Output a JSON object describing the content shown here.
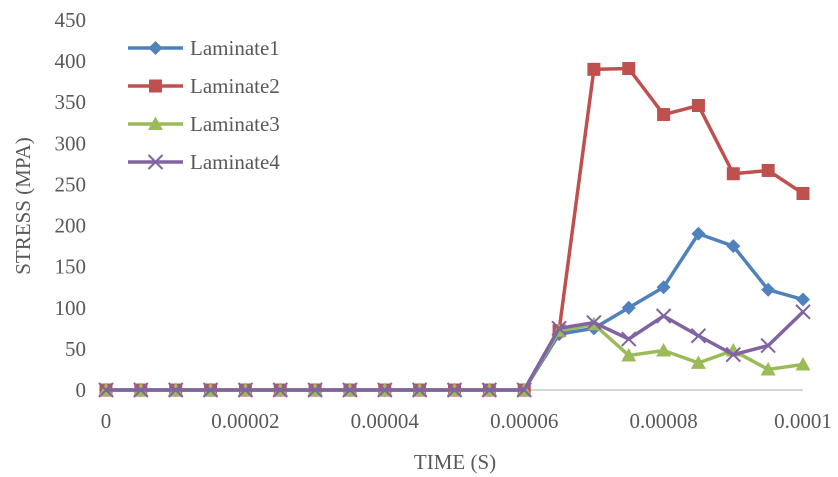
{
  "chart_data": {
    "type": "line",
    "title": "",
    "xlabel": "TIME (S)",
    "ylabel": "STRESS (MPA)",
    "xlim": [
      0,
      0.0001
    ],
    "ylim": [
      0,
      450
    ],
    "x_ticks": [
      0,
      2e-05,
      4e-05,
      6e-05,
      8e-05,
      0.0001
    ],
    "x_tick_labels": [
      "0",
      "0.00002",
      "0.00004",
      "0.00006",
      "0.00008",
      "0.0001"
    ],
    "y_ticks": [
      0,
      50,
      100,
      150,
      200,
      250,
      300,
      350,
      400,
      450
    ],
    "y_tick_labels": [
      "0",
      "50",
      "100",
      "150",
      "200",
      "250",
      "300",
      "350",
      "400",
      "450"
    ],
    "grid": false,
    "legend_position": "top-left",
    "x": [
      0,
      5e-06,
      1e-05,
      1.5e-05,
      2e-05,
      2.5e-05,
      3e-05,
      3.5e-05,
      4e-05,
      4.5e-05,
      5e-05,
      5.5e-05,
      6e-05,
      6.5e-05,
      7e-05,
      7.5e-05,
      8e-05,
      8.5e-05,
      9e-05,
      9.5e-05,
      0.0001
    ],
    "series": [
      {
        "name": "Laminate1",
        "color": "#4f81bd",
        "marker": "diamond",
        "values": [
          0,
          0,
          0,
          0,
          0,
          0,
          0,
          0,
          0,
          0,
          0,
          0,
          0,
          68,
          75,
          100,
          125,
          190,
          175,
          122,
          110
        ]
      },
      {
        "name": "Laminate2",
        "color": "#c0504d",
        "marker": "square",
        "values": [
          0,
          0,
          0,
          0,
          0,
          0,
          0,
          0,
          0,
          0,
          0,
          0,
          0,
          72,
          390,
          391,
          335,
          346,
          263,
          267,
          239
        ]
      },
      {
        "name": "Laminate3",
        "color": "#9bbb59",
        "marker": "triangle",
        "values": [
          0,
          0,
          0,
          0,
          0,
          0,
          0,
          0,
          0,
          0,
          0,
          0,
          0,
          72,
          80,
          42,
          48,
          33,
          48,
          25,
          31
        ]
      },
      {
        "name": "Laminate4",
        "color": "#8064a2",
        "marker": "x",
        "values": [
          0,
          0,
          0,
          0,
          0,
          0,
          0,
          0,
          0,
          0,
          0,
          0,
          0,
          75,
          82,
          62,
          90,
          66,
          43,
          54,
          95
        ]
      }
    ]
  }
}
